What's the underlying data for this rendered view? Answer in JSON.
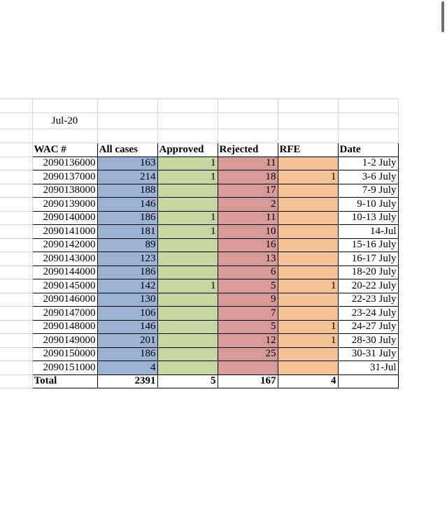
{
  "sheet": {
    "month_label": "Jul-20",
    "headers": [
      "WAC #",
      "All cases",
      "Approved",
      "Rejected",
      "RFE",
      "Date"
    ],
    "rows": [
      [
        "2090136000",
        "163",
        "1",
        "11",
        "",
        "1-2 July"
      ],
      [
        "2090137000",
        "214",
        "1",
        "18",
        "1",
        "3-6 July"
      ],
      [
        "2090138000",
        "188",
        "",
        "17",
        "",
        "7-9 July"
      ],
      [
        "2090139000",
        "146",
        "",
        "2",
        "",
        "9-10 July"
      ],
      [
        "2090140000",
        "186",
        "1",
        "11",
        "",
        "10-13 July"
      ],
      [
        "2090141000",
        "181",
        "1",
        "10",
        "",
        "14-Jul"
      ],
      [
        "2090142000",
        "89",
        "",
        "16",
        "",
        "15-16 July"
      ],
      [
        "2090143000",
        "123",
        "",
        "13",
        "",
        "16-17 July"
      ],
      [
        "2090144000",
        "186",
        "",
        "6",
        "",
        "18-20 July"
      ],
      [
        "2090145000",
        "142",
        "1",
        "5",
        "1",
        "20-22 July"
      ],
      [
        "2090146000",
        "130",
        "",
        "9",
        "",
        "22-23 July"
      ],
      [
        "2090147000",
        "106",
        "",
        "7",
        "",
        "23-24 July"
      ],
      [
        "2090148000",
        "146",
        "",
        "5",
        "1",
        "24-27 July"
      ],
      [
        "2090149000",
        "201",
        "",
        "12",
        "1",
        "28-30 July"
      ],
      [
        "2090150000",
        "186",
        "",
        "25",
        "",
        "30-31 July"
      ],
      [
        "2090151000",
        "4",
        "",
        "",
        "",
        "31-Jul"
      ]
    ],
    "total": [
      "Total",
      "2391",
      "5",
      "167",
      "4",
      ""
    ]
  },
  "colors": {
    "all_cases": "#9db3d6",
    "approved": "#c3d79e",
    "rejected": "#d79a98",
    "rfe": "#f4c195"
  }
}
